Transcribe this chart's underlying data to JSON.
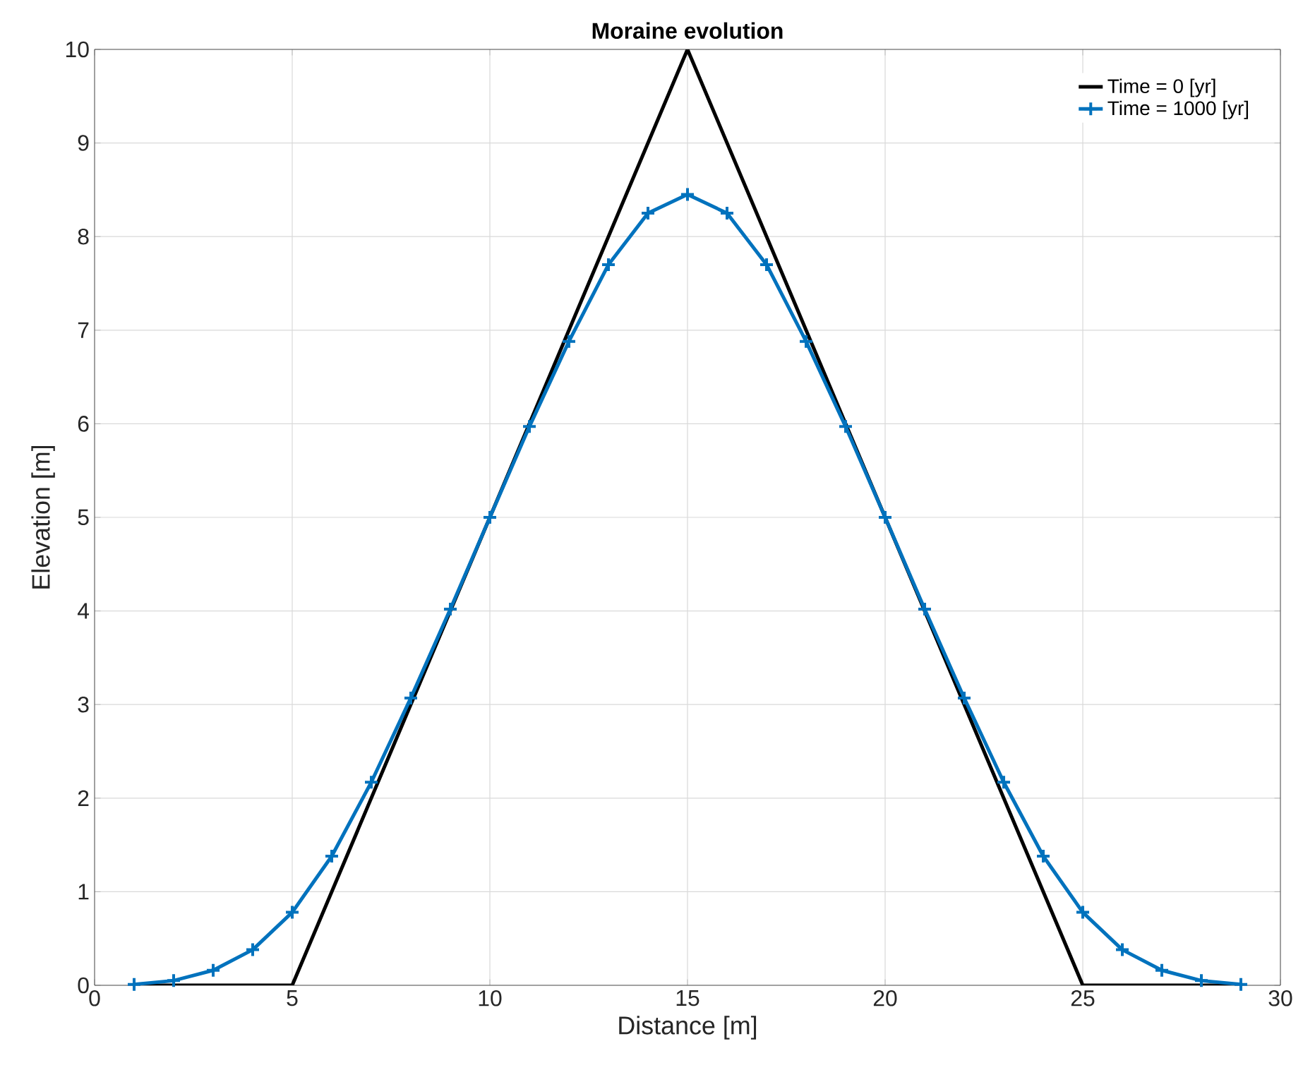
{
  "chart_data": {
    "type": "line",
    "title": "Moraine evolution",
    "xlabel": "Distance [m]",
    "ylabel": "Elevation [m]",
    "xlim": [
      0,
      30
    ],
    "ylim": [
      0,
      10
    ],
    "xticks": [
      0,
      5,
      10,
      15,
      20,
      25,
      30
    ],
    "yticks": [
      0,
      1,
      2,
      3,
      4,
      5,
      6,
      7,
      8,
      9,
      10
    ],
    "grid": true,
    "legend": "top right",
    "series": [
      {
        "name": "Time = 0 [yr]",
        "color": "#000000",
        "marker": "none",
        "x": [
          1,
          5,
          15,
          25,
          29
        ],
        "values": [
          0,
          0,
          10,
          0,
          0
        ]
      },
      {
        "name": "Time = 1000 [yr]",
        "color": "#0072bd",
        "marker": "cross",
        "x": [
          1,
          2,
          3,
          4,
          5,
          6,
          7,
          8,
          9,
          10,
          11,
          12,
          13,
          14,
          15,
          16,
          17,
          18,
          19,
          20,
          21,
          22,
          23,
          24,
          25,
          26,
          27,
          28,
          29
        ],
        "values": [
          0.01,
          0.05,
          0.16,
          0.38,
          0.78,
          1.38,
          2.17,
          3.07,
          4.02,
          5.0,
          5.97,
          6.88,
          7.7,
          8.25,
          8.45,
          8.25,
          7.7,
          6.88,
          5.97,
          5.0,
          4.02,
          3.07,
          2.17,
          1.38,
          0.78,
          0.38,
          0.16,
          0.05,
          0.01
        ]
      }
    ]
  }
}
